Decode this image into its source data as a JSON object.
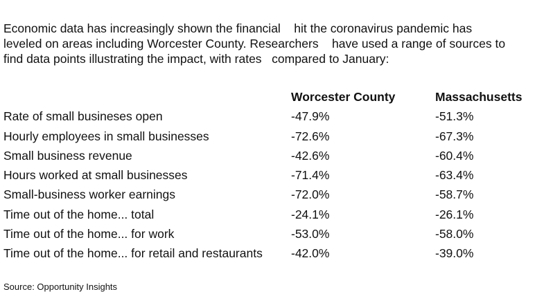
{
  "intro": {
    "lines": [
      "Economic data has increasingly shown the financial    hit the coronavirus pandemic has",
      "leveled on areas including Worcester County. Researchers    have used a range of sources to",
      "find data points illustrating the impact, with rates   compared to January:"
    ]
  },
  "table": {
    "columns": [
      "",
      "Worcester County",
      "Massachusetts"
    ],
    "rows": [
      [
        "Rate of small businеses open",
        "-47.9%",
        "-51.3%"
      ],
      [
        "Hourly employees in small businesses",
        "-72.6%",
        "-67.3%"
      ],
      [
        "Small business revenue",
        "-42.6%",
        "-60.4%"
      ],
      [
        "Hours worked at small businesses",
        "-71.4%",
        "-63.4%"
      ],
      [
        "Small-business worker earnings",
        "-72.0%",
        "-58.7%"
      ],
      [
        "Time out of the home... total",
        "-24.1%",
        "-26.1%"
      ],
      [
        "Time out of the home... for work",
        "-53.0%",
        "-58.0%"
      ],
      [
        "Time out of the home... for retail and restaurants",
        "-42.0%",
        "-39.0%"
      ]
    ]
  },
  "source": "Source: Opportunity Insights"
}
